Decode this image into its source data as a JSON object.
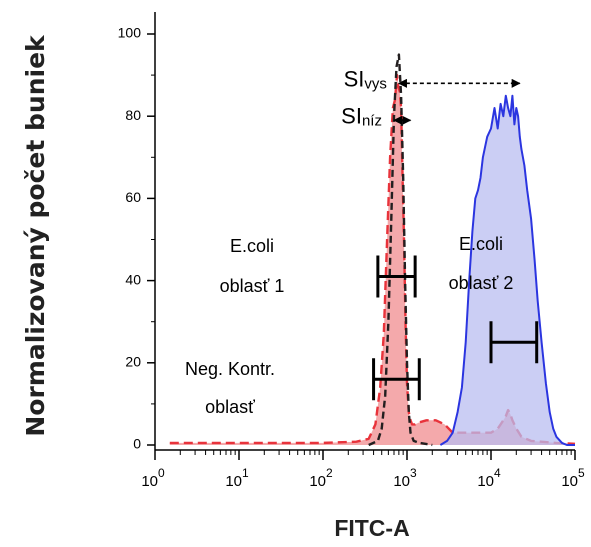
{
  "chart_data": {
    "type": "area",
    "title": "",
    "xlabel": "FITC-A",
    "ylabel": "Normalizovaný počet buniek",
    "x_scale": "log",
    "xlim": [
      1,
      100000
    ],
    "ylim": [
      0,
      100
    ],
    "y_ticks": [
      0,
      20,
      40,
      60,
      80,
      100
    ],
    "x_ticks": [
      {
        "value": 1,
        "base": "10",
        "exp": "0"
      },
      {
        "value": 10,
        "base": "10",
        "exp": "1"
      },
      {
        "value": 100,
        "base": "10",
        "exp": "2"
      },
      {
        "value": 1000,
        "base": "10",
        "exp": "3"
      },
      {
        "value": 10000,
        "base": "10",
        "exp": "4"
      },
      {
        "value": 100000,
        "base": "10",
        "exp": "5"
      }
    ],
    "series": [
      {
        "color": "#e8333b",
        "fill": "#f08c8f",
        "line_style": "dashed",
        "x": [
          1.5,
          100,
          250,
          350,
          420,
          480,
          530,
          580,
          630,
          680,
          720,
          760,
          790,
          820,
          850,
          880,
          920,
          960,
          1000,
          1050,
          1100,
          1150,
          1250,
          1400,
          1700,
          2200,
          2800,
          3500,
          4200,
          5000,
          6000,
          7000,
          8000,
          9000,
          10000,
          11000,
          12000,
          13000,
          14000,
          15000,
          16000,
          17000,
          18000,
          20000,
          23000,
          30000,
          60000,
          100000
        ],
        "y": [
          0.5,
          0.5,
          0.8,
          1.5,
          5,
          14,
          27,
          50,
          70,
          82,
          84,
          90,
          87,
          86,
          82,
          68,
          50,
          30,
          15,
          8,
          6,
          5,
          5,
          5.5,
          6,
          6,
          5,
          3,
          3,
          3,
          3,
          3,
          3,
          3,
          3,
          3.5,
          4,
          5,
          6,
          7,
          8.5,
          7.5,
          6,
          4,
          2,
          1,
          0.5,
          0.3
        ]
      },
      {
        "color": "#231f20",
        "line_style": "dashed",
        "x": [
          350,
          450,
          500,
          550,
          600,
          650,
          700,
          750,
          800,
          850,
          900,
          950,
          1000,
          1050,
          1100,
          1200,
          1400,
          2000
        ],
        "y": [
          0,
          1,
          4,
          12,
          30,
          55,
          80,
          92,
          95,
          85,
          65,
          40,
          20,
          8,
          3,
          1,
          0.5,
          0
        ]
      },
      {
        "color": "#2b35e0",
        "fill": "#b9bdf0",
        "line_style": "solid",
        "x": [
          2500,
          3000,
          3500,
          4000,
          4500,
          5000,
          5500,
          6000,
          6500,
          7000,
          7500,
          8000,
          9000,
          10000,
          11000,
          12000,
          13000,
          14000,
          15000,
          16000,
          17000,
          18000,
          19000,
          20000,
          21000,
          22000,
          23000,
          25000,
          27000,
          30000,
          33000,
          36000,
          40000,
          45000,
          50000,
          55000,
          60000,
          70000,
          80000,
          100000
        ],
        "y": [
          0,
          1,
          3,
          8,
          14,
          25,
          40,
          52,
          60,
          62,
          65,
          70,
          75,
          77,
          82,
          77,
          83,
          80,
          85,
          82,
          80,
          85,
          78,
          82,
          80,
          75,
          72,
          68,
          62,
          55,
          45,
          35,
          25,
          15,
          8,
          4,
          2,
          0.5,
          0,
          0
        ]
      }
    ],
    "annotations": {
      "si_vys": {
        "base": "SI",
        "sub": "vys",
        "from": 800,
        "to": 22000,
        "y": 88
      },
      "si_niz": {
        "base": "SI",
        "sub": "níz",
        "from": 700,
        "to": 1100,
        "y": 79
      },
      "gates": [
        {
          "label_lines": [
            "E.coli",
            "oblasť 1"
          ],
          "from": 450,
          "to": 1250,
          "y": 41
        },
        {
          "label_lines": [
            "Neg. Kontr.",
            "oblasť"
          ],
          "from": 400,
          "to": 1400,
          "y": 16
        },
        {
          "label_lines": [
            "E.coli",
            "oblasť 2"
          ],
          "from": 10000,
          "to": 35000,
          "y": 25
        }
      ]
    }
  }
}
